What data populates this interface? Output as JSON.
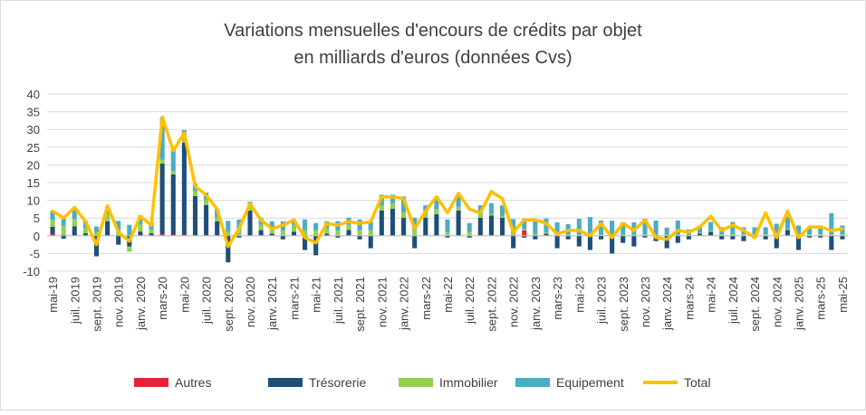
{
  "chart_data": {
    "type": "bar",
    "stacked": true,
    "title_lines": [
      "Variations mensuelles d'encours de crédits par objet",
      "en milliards d'euros (données Cvs)"
    ],
    "ylim": [
      -10,
      40
    ],
    "yticks": [
      -10,
      -5,
      0,
      5,
      10,
      15,
      20,
      25,
      30,
      35,
      40
    ],
    "grid": true,
    "legend_position": "bottom",
    "categories": [
      "mai-19",
      "juin-19",
      "juil. 2019",
      "août-19",
      "sept. 2019",
      "oct.-19",
      "nov. 2019",
      "déc.-19",
      "janv. 2020",
      "févr.-20",
      "mars-20",
      "avr.-20",
      "mai-20",
      "juin-20",
      "juil. 2020",
      "août-20",
      "sept. 2020",
      "oct.-20",
      "nov. 2020",
      "déc.-20",
      "janv. 2021",
      "févr.-21",
      "mars-21",
      "avr.-21",
      "mai-21",
      "juin-21",
      "juil. 2021",
      "août-21",
      "sept. 2021",
      "oct.-21",
      "nov. 2021",
      "déc.-21",
      "janv. 2022",
      "févr.-22",
      "mars-22",
      "avr.-22",
      "mai-22",
      "juin-22",
      "juil. 2022",
      "août-22",
      "sept. 2022",
      "oct.-22",
      "nov. 2022",
      "déc.-22",
      "janv. 2023",
      "févr.-23",
      "mars-23",
      "avr.-23",
      "mai-23",
      "juin-23",
      "juil. 2023",
      "août-23",
      "sept. 2023",
      "oct.-23",
      "nov. 2023",
      "déc.-23",
      "janv. 2024",
      "févr.-24",
      "mars-24",
      "avr.-24",
      "mai-24",
      "juin-24",
      "juil. 2024",
      "août-24",
      "sept. 2024",
      "oct.-24",
      "nov. 2024",
      "déc.-24",
      "janv. 2025",
      "févr.-25",
      "mars-25",
      "avr.-25",
      "mai-25"
    ],
    "labeled_categories": [
      "mai-19",
      "juil. 2019",
      "sept. 2019",
      "nov. 2019",
      "janv. 2020",
      "mars-20",
      "mai-20",
      "juil. 2020",
      "sept. 2020",
      "nov. 2020",
      "janv. 2021",
      "mars-21",
      "mai-21",
      "juil. 2021",
      "sept. 2021",
      "nov. 2021",
      "janv. 2022",
      "mars-22",
      "mai-22",
      "juil. 2022",
      "sept. 2022",
      "nov. 2022",
      "janv. 2023",
      "mars-23",
      "mai-23",
      "juil. 2023",
      "sept. 2023",
      "nov. 2023",
      "janv. 2024",
      "mars-24",
      "mai-24",
      "juil. 2024",
      "sept. 2024",
      "nov. 2024",
      "janv. 2025",
      "mars-25",
      "mai-25"
    ],
    "series": [
      {
        "name": "Autres",
        "type": "bar",
        "color": "#e32636",
        "values": [
          0.5,
          0.3,
          0.2,
          0.2,
          0.1,
          0.1,
          0.2,
          0.1,
          0.2,
          0.2,
          0.4,
          0.3,
          0.3,
          0.2,
          0.2,
          0.1,
          0.2,
          0.1,
          0.1,
          0.1,
          0.1,
          0.1,
          0.1,
          0.1,
          0.1,
          0.1,
          0.1,
          0.1,
          0.1,
          0.1,
          0.1,
          0.1,
          0.1,
          0.1,
          0.1,
          0.1,
          0.1,
          0.1,
          0.1,
          0.1,
          0.2,
          0.1,
          0.2,
          1.5,
          0.2,
          0.1,
          0.1,
          0.1,
          0.1,
          0.1,
          0.1,
          0.1,
          0.1,
          0.1,
          0.1,
          0.1,
          0.1,
          0.1,
          0.1,
          0.1,
          0.1,
          0.1,
          0.1,
          0.1,
          0.1,
          0.1,
          0.1,
          0.1,
          0.1,
          0.1,
          0.1,
          0.1,
          0.1
        ]
      },
      {
        "name": "Trésorerie",
        "type": "bar",
        "color": "#1f4e79",
        "values": [
          2,
          -0.8,
          2.5,
          0.5,
          -5.8,
          4,
          -2.5,
          -3,
          1,
          0.5,
          20,
          17,
          26,
          11,
          8.5,
          4,
          -7.5,
          -0.5,
          7,
          1.5,
          0.5,
          -1,
          1,
          -4,
          -5.5,
          0.5,
          -0.5,
          1.5,
          -1,
          -3.5,
          7,
          7.5,
          5,
          -3.5,
          5,
          6,
          -0.5,
          7,
          -0.5,
          5,
          5.5,
          5,
          -3.5,
          -0.5,
          -1,
          0.5,
          -3.5,
          -1,
          -3,
          -4,
          -1,
          -5,
          -2,
          -3,
          -0.5,
          -1.5,
          -3.5,
          -2,
          -1,
          0.5,
          1,
          -1,
          -1,
          -1.5,
          -0.5,
          -1,
          -3.5,
          1.5,
          -4,
          -0.5,
          -0.5,
          -4,
          -1
        ]
      },
      {
        "name": "Immobilier",
        "type": "bar",
        "color": "#92d050",
        "values": [
          2,
          2.5,
          2,
          1.5,
          1,
          2,
          1.5,
          -1.5,
          2,
          1,
          1,
          1,
          1.5,
          1.5,
          1.5,
          1,
          1,
          1.5,
          1.5,
          1.5,
          1.5,
          1.5,
          2,
          1.5,
          1.5,
          1.5,
          1.5,
          1.5,
          1.5,
          1.5,
          1.5,
          1.5,
          1.5,
          1.5,
          1.5,
          1.5,
          1,
          1,
          1,
          1,
          0.5,
          0.5,
          0.5,
          0.3,
          0.3,
          0.3,
          0.2,
          0.2,
          0.2,
          0.2,
          0.2,
          0.2,
          0.2,
          0.2,
          0.2,
          0.2,
          0.2,
          0.2,
          0.2,
          0.2,
          0.3,
          0.3,
          0.3,
          0.3,
          0.3,
          0.3,
          0.3,
          0.3,
          0.3,
          0.3,
          0.3,
          0.3,
          0.3
        ]
      },
      {
        "name": "Equipement",
        "type": "bar",
        "color": "#4bacc6",
        "values": [
          2.5,
          2,
          3,
          2,
          1.5,
          2,
          2.5,
          3,
          2.5,
          2,
          12,
          6,
          2,
          2,
          2,
          2.5,
          3,
          3,
          1,
          2,
          2,
          2.5,
          1.5,
          3,
          2,
          2,
          2.5,
          2,
          3,
          2.5,
          3,
          2.5,
          4.5,
          3.5,
          2,
          3.5,
          3.5,
          3,
          2.5,
          2.5,
          3,
          3,
          4,
          3,
          4,
          4,
          3.5,
          3,
          4.5,
          5,
          4,
          4,
          3.5,
          3.5,
          4.5,
          4,
          2,
          4,
          1.5,
          2,
          2.5,
          2,
          3.5,
          2,
          2,
          2,
          3,
          3.5,
          2.5,
          2,
          2.5,
          6,
          2.5
        ]
      },
      {
        "name": "Total",
        "type": "line",
        "color": "#ffc000",
        "values": [
          7,
          5,
          8,
          4,
          -2.5,
          8.5,
          1,
          -1.5,
          5.5,
          3,
          33.5,
          24,
          29,
          14,
          11.5,
          7.5,
          -3,
          2,
          9,
          4.5,
          2,
          3,
          4.5,
          -0.5,
          -2,
          3.5,
          3,
          4,
          3.5,
          4,
          11,
          11,
          10.5,
          2,
          7,
          11,
          6.5,
          12,
          7.5,
          6.5,
          12.5,
          10.5,
          1,
          4.5,
          4.5,
          3.5,
          0.5,
          1.5,
          1.5,
          0,
          3.5,
          -0.5,
          3.5,
          1.5,
          4.5,
          -0.5,
          -1,
          1.5,
          1,
          2.5,
          5.5,
          1.5,
          3,
          1.5,
          -0.5,
          6.5,
          -0.5,
          7,
          -0.5,
          2.5,
          2.5,
          1.5,
          2
        ]
      }
    ]
  }
}
